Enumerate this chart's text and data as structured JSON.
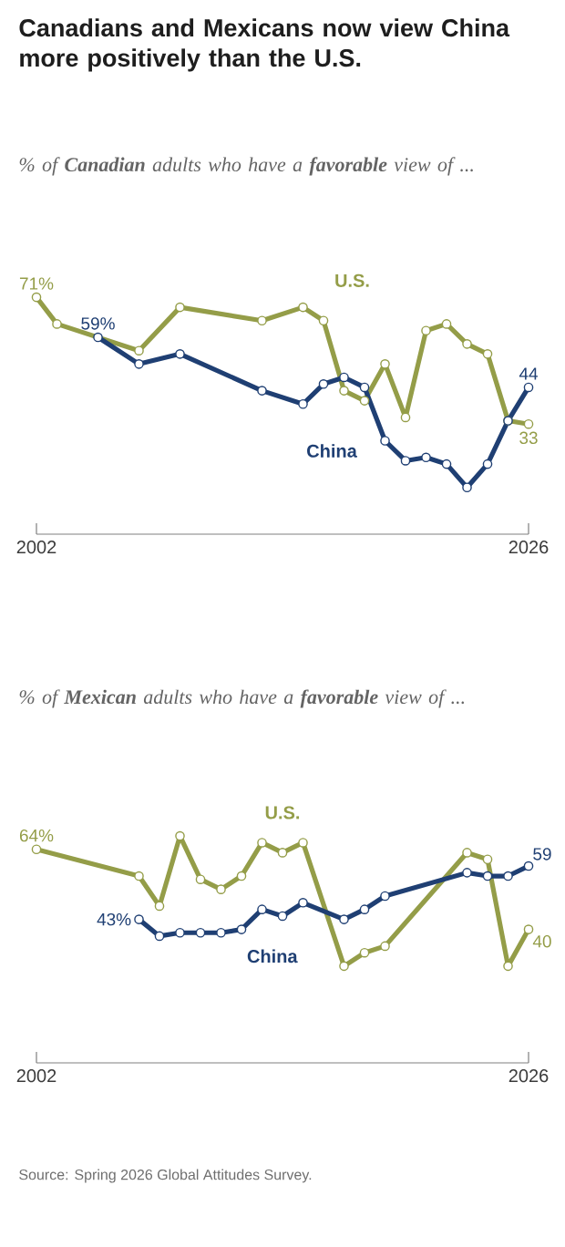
{
  "chart_data": [
    {
      "type": "line",
      "title": "Canadians and Mexicans now view China more positively than the U.S.",
      "subtitle": "% of **Canadian** adults who have a **favorable** view of ...",
      "xlim": [
        2002,
        2026
      ],
      "xticks": [
        2002,
        2026
      ],
      "marker": "circle",
      "line_style": "solid",
      "series": [
        {
          "name": "U.S.",
          "color": "#949d48",
          "x": [
            2002,
            2003,
            2007,
            2009,
            2013,
            2015,
            2016,
            2017,
            2018,
            2019,
            2020,
            2021,
            2022,
            2023,
            2024,
            2025,
            2026
          ],
          "values": [
            71,
            63,
            55,
            68,
            64,
            68,
            64,
            43,
            40,
            51,
            35,
            61,
            63,
            57,
            54,
            34,
            33
          ],
          "value_labels": [
            "71%",
            null,
            null,
            null,
            null,
            null,
            null,
            null,
            null,
            null,
            null,
            null,
            null,
            null,
            null,
            null,
            "33"
          ]
        },
        {
          "name": "China",
          "color": "#1f3f73",
          "x": [
            2005,
            2007,
            2009,
            2013,
            2015,
            2016,
            2017,
            2018,
            2019,
            2020,
            2021,
            2022,
            2023,
            2024,
            2025,
            2026
          ],
          "values": [
            59,
            51,
            54,
            43,
            39,
            45,
            47,
            44,
            28,
            22,
            23,
            21,
            14,
            21,
            34,
            44
          ],
          "value_labels": [
            "59%",
            null,
            null,
            null,
            null,
            null,
            null,
            null,
            null,
            null,
            null,
            null,
            null,
            null,
            null,
            "44"
          ]
        }
      ]
    },
    {
      "type": "line",
      "subtitle": "% of **Mexican** adults who have a **favorable** view of ...",
      "xlim": [
        2002,
        2026
      ],
      "xticks": [
        2002,
        2026
      ],
      "marker": "circle",
      "line_style": "solid",
      "annotations": [
        "Source: Spring 2026 Global Attitudes Survey."
      ],
      "series": [
        {
          "name": "U.S.",
          "color": "#949d48",
          "x": [
            2002,
            2007,
            2008,
            2009,
            2010,
            2011,
            2012,
            2013,
            2014,
            2015,
            2017,
            2018,
            2019,
            2023,
            2024,
            2025,
            2026
          ],
          "values": [
            64,
            56,
            47,
            68,
            55,
            52,
            56,
            66,
            63,
            66,
            29,
            33,
            35,
            63,
            61,
            29,
            40
          ],
          "value_labels": [
            "64%",
            null,
            null,
            null,
            null,
            null,
            null,
            null,
            null,
            null,
            null,
            null,
            null,
            null,
            null,
            null,
            "40"
          ]
        },
        {
          "name": "China",
          "color": "#1f3f73",
          "x": [
            2007,
            2008,
            2009,
            2010,
            2011,
            2012,
            2013,
            2014,
            2015,
            2017,
            2018,
            2019,
            2023,
            2024,
            2025,
            2026
          ],
          "values": [
            43,
            38,
            39,
            39,
            39,
            40,
            46,
            44,
            48,
            43,
            46,
            50,
            57,
            56,
            56,
            59
          ],
          "value_labels": [
            "43%",
            null,
            null,
            null,
            null,
            null,
            null,
            null,
            null,
            null,
            null,
            null,
            null,
            null,
            null,
            "59"
          ]
        }
      ]
    }
  ]
}
